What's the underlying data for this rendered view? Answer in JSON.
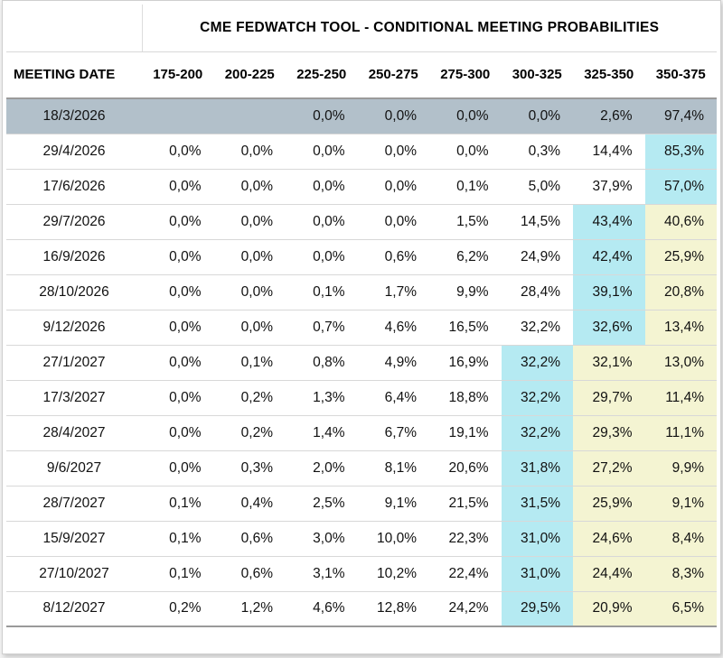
{
  "chart_data": {
    "type": "table",
    "title": "CME FEDWATCH TOOL - CONDITIONAL MEETING PROBABILITIES",
    "date_column_header": "MEETING DATE",
    "rate_bin_headers": [
      "175-200",
      "200-225",
      "225-250",
      "250-275",
      "275-300",
      "300-325",
      "325-350",
      "350-375"
    ],
    "rows": [
      {
        "date": "18/3/2026",
        "values": [
          "",
          "",
          "0,0%",
          "0,0%",
          "0,0%",
          "0,0%",
          "2,6%",
          "97,4%"
        ],
        "highlights": [
          "",
          "",
          "",
          "",
          "",
          "",
          "",
          ""
        ],
        "row_selected": true
      },
      {
        "date": "29/4/2026",
        "values": [
          "0,0%",
          "0,0%",
          "0,0%",
          "0,0%",
          "0,0%",
          "0,3%",
          "14,4%",
          "85,3%"
        ],
        "highlights": [
          "",
          "",
          "",
          "",
          "",
          "",
          "",
          "c"
        ],
        "row_selected": false
      },
      {
        "date": "17/6/2026",
        "values": [
          "0,0%",
          "0,0%",
          "0,0%",
          "0,0%",
          "0,1%",
          "5,0%",
          "37,9%",
          "57,0%"
        ],
        "highlights": [
          "",
          "",
          "",
          "",
          "",
          "",
          "",
          "c"
        ],
        "row_selected": false
      },
      {
        "date": "29/7/2026",
        "values": [
          "0,0%",
          "0,0%",
          "0,0%",
          "0,0%",
          "1,5%",
          "14,5%",
          "43,4%",
          "40,6%"
        ],
        "highlights": [
          "",
          "",
          "",
          "",
          "",
          "",
          "c",
          "y"
        ],
        "row_selected": false
      },
      {
        "date": "16/9/2026",
        "values": [
          "0,0%",
          "0,0%",
          "0,0%",
          "0,6%",
          "6,2%",
          "24,9%",
          "42,4%",
          "25,9%"
        ],
        "highlights": [
          "",
          "",
          "",
          "",
          "",
          "",
          "c",
          "y"
        ],
        "row_selected": false
      },
      {
        "date": "28/10/2026",
        "values": [
          "0,0%",
          "0,0%",
          "0,1%",
          "1,7%",
          "9,9%",
          "28,4%",
          "39,1%",
          "20,8%"
        ],
        "highlights": [
          "",
          "",
          "",
          "",
          "",
          "",
          "c",
          "y"
        ],
        "row_selected": false
      },
      {
        "date": "9/12/2026",
        "values": [
          "0,0%",
          "0,0%",
          "0,7%",
          "4,6%",
          "16,5%",
          "32,2%",
          "32,6%",
          "13,4%"
        ],
        "highlights": [
          "",
          "",
          "",
          "",
          "",
          "",
          "c",
          "y"
        ],
        "row_selected": false
      },
      {
        "date": "27/1/2027",
        "values": [
          "0,0%",
          "0,1%",
          "0,8%",
          "4,9%",
          "16,9%",
          "32,2%",
          "32,1%",
          "13,0%"
        ],
        "highlights": [
          "",
          "",
          "",
          "",
          "",
          "c",
          "y",
          "y"
        ],
        "row_selected": false
      },
      {
        "date": "17/3/2027",
        "values": [
          "0,0%",
          "0,2%",
          "1,3%",
          "6,4%",
          "18,8%",
          "32,2%",
          "29,7%",
          "11,4%"
        ],
        "highlights": [
          "",
          "",
          "",
          "",
          "",
          "c",
          "y",
          "y"
        ],
        "row_selected": false
      },
      {
        "date": "28/4/2027",
        "values": [
          "0,0%",
          "0,2%",
          "1,4%",
          "6,7%",
          "19,1%",
          "32,2%",
          "29,3%",
          "11,1%"
        ],
        "highlights": [
          "",
          "",
          "",
          "",
          "",
          "c",
          "y",
          "y"
        ],
        "row_selected": false
      },
      {
        "date": "9/6/2027",
        "values": [
          "0,0%",
          "0,3%",
          "2,0%",
          "8,1%",
          "20,6%",
          "31,8%",
          "27,2%",
          "9,9%"
        ],
        "highlights": [
          "",
          "",
          "",
          "",
          "",
          "c",
          "y",
          "y"
        ],
        "row_selected": false
      },
      {
        "date": "28/7/2027",
        "values": [
          "0,1%",
          "0,4%",
          "2,5%",
          "9,1%",
          "21,5%",
          "31,5%",
          "25,9%",
          "9,1%"
        ],
        "highlights": [
          "",
          "",
          "",
          "",
          "",
          "c",
          "y",
          "y"
        ],
        "row_selected": false
      },
      {
        "date": "15/9/2027",
        "values": [
          "0,1%",
          "0,6%",
          "3,0%",
          "10,0%",
          "22,3%",
          "31,0%",
          "24,6%",
          "8,4%"
        ],
        "highlights": [
          "",
          "",
          "",
          "",
          "",
          "c",
          "y",
          "y"
        ],
        "row_selected": false
      },
      {
        "date": "27/10/2027",
        "values": [
          "0,1%",
          "0,6%",
          "3,1%",
          "10,2%",
          "22,4%",
          "31,0%",
          "24,4%",
          "8,3%"
        ],
        "highlights": [
          "",
          "",
          "",
          "",
          "",
          "c",
          "y",
          "y"
        ],
        "row_selected": false
      },
      {
        "date": "8/12/2027",
        "values": [
          "0,2%",
          "1,2%",
          "4,6%",
          "12,8%",
          "24,2%",
          "29,5%",
          "20,9%",
          "6,5%"
        ],
        "highlights": [
          "",
          "",
          "",
          "",
          "",
          "c",
          "y",
          "y"
        ],
        "row_selected": false
      }
    ]
  },
  "colors": {
    "highlight_cyan": "#b5eaf2",
    "highlight_yellow": "#f4f4d2",
    "selected_row": "#b2c0ca",
    "row_border": "#d8d8d8",
    "header_border": "#9a9a9a",
    "text": "#111111"
  }
}
